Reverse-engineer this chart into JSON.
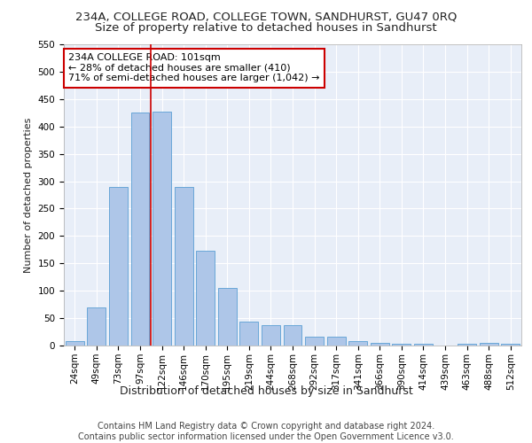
{
  "title_line1": "234A, COLLEGE ROAD, COLLEGE TOWN, SANDHURST, GU47 0RQ",
  "title_line2": "Size of property relative to detached houses in Sandhurst",
  "xlabel": "Distribution of detached houses by size in Sandhurst",
  "ylabel": "Number of detached properties",
  "bar_labels": [
    "24sqm",
    "49sqm",
    "73sqm",
    "97sqm",
    "122sqm",
    "146sqm",
    "170sqm",
    "195sqm",
    "219sqm",
    "244sqm",
    "268sqm",
    "292sqm",
    "317sqm",
    "341sqm",
    "366sqm",
    "390sqm",
    "414sqm",
    "439sqm",
    "463sqm",
    "488sqm",
    "512sqm"
  ],
  "bar_values": [
    8,
    70,
    290,
    425,
    427,
    290,
    173,
    105,
    44,
    37,
    37,
    16,
    16,
    8,
    5,
    3,
    3,
    0,
    3,
    5,
    3
  ],
  "bar_color": "#aec6e8",
  "bar_edge_color": "#5a9fd4",
  "vline_x": 3.5,
  "vline_color": "#cc0000",
  "annotation_text": "234A COLLEGE ROAD: 101sqm\n← 28% of detached houses are smaller (410)\n71% of semi-detached houses are larger (1,042) →",
  "annotation_box_color": "#ffffff",
  "annotation_box_edge_color": "#cc0000",
  "ylim": [
    0,
    550
  ],
  "yticks": [
    0,
    50,
    100,
    150,
    200,
    250,
    300,
    350,
    400,
    450,
    500,
    550
  ],
  "background_color": "#e8eef8",
  "grid_color": "#ffffff",
  "footer_line1": "Contains HM Land Registry data © Crown copyright and database right 2024.",
  "footer_line2": "Contains public sector information licensed under the Open Government Licence v3.0.",
  "title_fontsize": 9.5,
  "subtitle_fontsize": 9.5,
  "ylabel_fontsize": 8,
  "xlabel_fontsize": 9,
  "annotation_fontsize": 8,
  "footer_fontsize": 7,
  "tick_fontsize": 7.5
}
